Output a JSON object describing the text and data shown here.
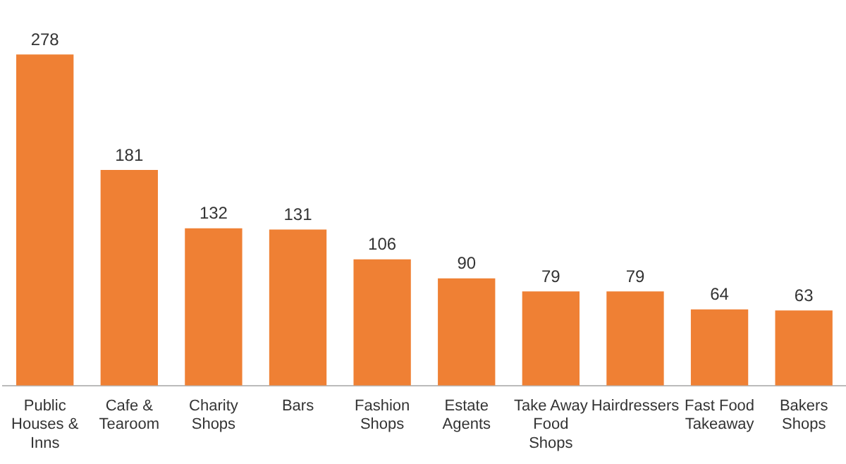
{
  "chart_data": {
    "type": "bar",
    "categories": [
      "Public Houses & Inns",
      "Cafe & Tearoom",
      "Charity Shops",
      "Bars",
      "Fashion Shops",
      "Estate Agents",
      "Take Away Food Shops",
      "Hairdressers",
      "Fast Food Takeaway",
      "Bakers Shops"
    ],
    "values": [
      278,
      181,
      132,
      131,
      106,
      90,
      79,
      79,
      64,
      63
    ],
    "color": "#ef8034",
    "data_labels": true,
    "grid": false,
    "legend": false,
    "tick_labels": "x"
  }
}
